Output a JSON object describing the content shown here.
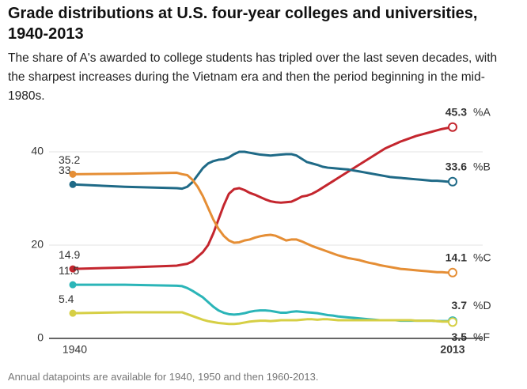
{
  "chart_data": {
    "type": "line",
    "title": "Grade distributions at U.S. four-year colleges and universities, 1940-2013",
    "subtitle": "The share of A's awarded to college students has tripled over the last seven decades, with the sharpest increases during the Vietnam era and then the period beginning in the mid-1980s.",
    "note": "Annual datapoints are available for 1940, 1950 and then 1960-2013.",
    "x": [
      1940,
      1950,
      1960,
      1961,
      1962,
      1963,
      1964,
      1965,
      1966,
      1967,
      1968,
      1969,
      1970,
      1971,
      1972,
      1973,
      1974,
      1975,
      1976,
      1977,
      1978,
      1979,
      1980,
      1981,
      1982,
      1983,
      1984,
      1985,
      1986,
      1987,
      1988,
      1989,
      1990,
      1991,
      1992,
      1993,
      1994,
      1995,
      1996,
      1997,
      1998,
      1999,
      2000,
      2001,
      2002,
      2003,
      2004,
      2005,
      2006,
      2007,
      2008,
      2009,
      2010,
      2011,
      2012,
      2013
    ],
    "xlim": [
      1940,
      2013
    ],
    "xticks": [
      1940,
      2013
    ],
    "ylim": [
      0,
      40
    ],
    "yticks": [
      0,
      20,
      40
    ],
    "grid": true,
    "series": [
      {
        "name": "%A",
        "color": "#c4262e",
        "values": [
          14.9,
          15.2,
          15.6,
          15.8,
          16.0,
          16.5,
          17.5,
          18.5,
          20,
          22.5,
          25.5,
          28.5,
          31,
          32,
          32.2,
          31.8,
          31.2,
          30.8,
          30.3,
          29.8,
          29.4,
          29.2,
          29.1,
          29.2,
          29.3,
          29.8,
          30.4,
          30.6,
          31.0,
          31.6,
          32.3,
          33.0,
          33.7,
          34.4,
          35.1,
          35.8,
          36.5,
          37.2,
          37.9,
          38.6,
          39.3,
          40.0,
          40.7,
          41.2,
          41.7,
          42.2,
          42.6,
          43,
          43.4,
          43.7,
          44,
          44.3,
          44.6,
          44.9,
          45.1,
          45.3
        ]
      },
      {
        "name": "%B",
        "color": "#1f6a87",
        "values": [
          33,
          32.5,
          32.2,
          32.1,
          32.5,
          33.5,
          35,
          36.5,
          37.5,
          38,
          38.3,
          38.4,
          38.8,
          39.5,
          40.0,
          40.0,
          39.8,
          39.6,
          39.4,
          39.3,
          39.2,
          39.3,
          39.4,
          39.5,
          39.5,
          39.2,
          38.5,
          37.8,
          37.5,
          37.2,
          36.8,
          36.6,
          36.5,
          36.4,
          36.3,
          36.2,
          36,
          35.8,
          35.6,
          35.4,
          35.2,
          35,
          34.8,
          34.6,
          34.5,
          34.4,
          34.3,
          34.2,
          34.1,
          34,
          33.9,
          33.8,
          33.8,
          33.7,
          33.6,
          33.6
        ]
      },
      {
        "name": "%C",
        "color": "#e58e35",
        "values": [
          35.2,
          35.3,
          35.5,
          35.2,
          35,
          34,
          32.5,
          30.5,
          28,
          25.5,
          23.5,
          22,
          21,
          20.5,
          20.6,
          21,
          21.2,
          21.6,
          21.9,
          22.1,
          22.2,
          22.0,
          21.5,
          21,
          21.2,
          21.2,
          20.8,
          20.3,
          19.8,
          19.4,
          19,
          18.6,
          18.2,
          17.8,
          17.5,
          17.2,
          17,
          16.8,
          16.5,
          16.2,
          16,
          15.7,
          15.5,
          15.3,
          15.1,
          14.9,
          14.8,
          14.7,
          14.6,
          14.5,
          14.4,
          14.3,
          14.2,
          14.2,
          14.1,
          14.1
        ]
      },
      {
        "name": "%D",
        "color": "#2bb5b8",
        "values": [
          11.5,
          11.5,
          11.3,
          11.2,
          10.8,
          10.2,
          9.5,
          8.8,
          7.8,
          6.8,
          6,
          5.5,
          5.2,
          5.1,
          5.2,
          5.4,
          5.7,
          5.9,
          6,
          6,
          5.9,
          5.7,
          5.5,
          5.5,
          5.7,
          5.8,
          5.7,
          5.6,
          5.5,
          5.4,
          5.2,
          5,
          4.9,
          4.7,
          4.6,
          4.5,
          4.4,
          4.3,
          4.2,
          4.1,
          4.0,
          3.9,
          3.9,
          3.9,
          3.9,
          3.8,
          3.8,
          3.8,
          3.8,
          3.8,
          3.8,
          3.8,
          3.7,
          3.7,
          3.7,
          3.7
        ]
      },
      {
        "name": "%F",
        "color": "#d6cf45",
        "values": [
          5.4,
          5.6,
          5.6,
          5.6,
          5.2,
          4.8,
          4.4,
          4.0,
          3.7,
          3.5,
          3.3,
          3.2,
          3.1,
          3.1,
          3.2,
          3.4,
          3.6,
          3.7,
          3.8,
          3.8,
          3.7,
          3.8,
          3.9,
          3.9,
          3.9,
          3.9,
          4.0,
          4.1,
          4.1,
          4.0,
          4.1,
          4.1,
          4.0,
          3.9,
          3.9,
          3.9,
          3.9,
          3.9,
          3.9,
          3.9,
          3.9,
          3.9,
          3.9,
          3.9,
          3.9,
          3.9,
          3.9,
          3.9,
          3.8,
          3.8,
          3.8,
          3.8,
          3.7,
          3.6,
          3.6,
          3.5
        ]
      }
    ]
  }
}
